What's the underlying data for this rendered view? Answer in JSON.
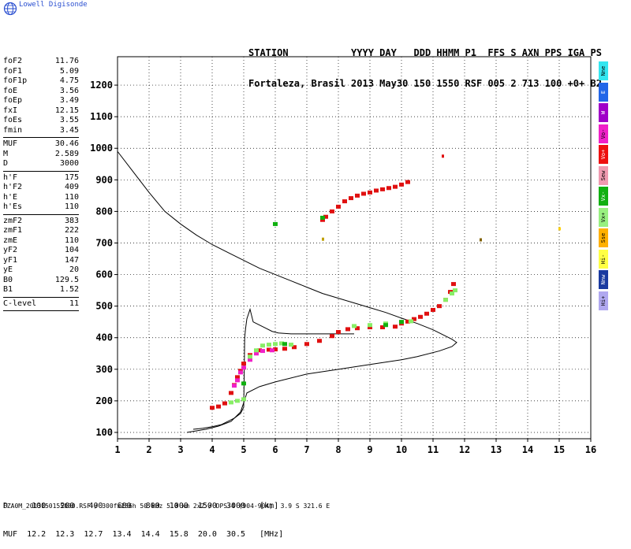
{
  "brand": "Lowell Digisonde",
  "header": {
    "line1": "STATION           YYYY DAY   DDD HHMM P1  FFS S AXN PPS IGA PS",
    "line2": "Fortaleza, Brasil 2013 May30 150 1550 RSF 005 2 713 100 +0+ B2"
  },
  "params": [
    [
      {
        "k": "foF2",
        "v": "11.76"
      },
      {
        "k": "foF1",
        "v": "5.09"
      },
      {
        "k": "foF1p",
        "v": "4.75"
      },
      {
        "k": "foE",
        "v": "3.56"
      },
      {
        "k": "foEp",
        "v": "3.49"
      },
      {
        "k": "fxI",
        "v": "12.15"
      },
      {
        "k": "foEs",
        "v": "3.55"
      },
      {
        "k": "fmin",
        "v": "3.45"
      }
    ],
    [
      {
        "k": "MUF",
        "v": "30.46"
      },
      {
        "k": "M",
        "v": "2.589"
      },
      {
        "k": "D",
        "v": "3000"
      }
    ],
    [
      {
        "k": "h'F",
        "v": "175"
      },
      {
        "k": "h'F2",
        "v": "409"
      },
      {
        "k": "h'E",
        "v": "110"
      },
      {
        "k": "h'Es",
        "v": "110"
      }
    ],
    [
      {
        "k": "zmF2",
        "v": "383"
      },
      {
        "k": "zmF1",
        "v": "222"
      },
      {
        "k": "zmE",
        "v": "110"
      },
      {
        "k": "yF2",
        "v": "104"
      },
      {
        "k": "yF1",
        "v": "147"
      },
      {
        "k": "yE",
        "v": "20"
      },
      {
        "k": "B0",
        "v": "129.5"
      },
      {
        "k": "B1",
        "v": "1.52"
      }
    ],
    [
      {
        "k": "C-level",
        "v": "11"
      }
    ]
  ],
  "legend": [
    {
      "label": "Nne",
      "color": "#33e6f0"
    },
    {
      "label": "E",
      "color": "#2266e8"
    },
    {
      "label": "W",
      "color": "#a000c8"
    },
    {
      "label": "Vo-",
      "color": "#f020c8"
    },
    {
      "label": "Vo+",
      "color": "#ee1010"
    },
    {
      "label": "Sew",
      "color": "#f09ab0"
    },
    {
      "label": "Vx-",
      "color": "#10b010"
    },
    {
      "label": "Vx+",
      "color": "#98f080"
    },
    {
      "label": "Sse",
      "color": "#ffb000"
    },
    {
      "label": "Hi-",
      "color": "#ffff44"
    },
    {
      "label": "Nnw",
      "color": "#1a3aa0"
    },
    {
      "label": "Hi+",
      "color": "#b0a8f0"
    }
  ],
  "muf_table": {
    "line1": "D     100   200   400   600   800  1000  1500  3000   [km]",
    "line2": "MUF  12.2  12.3  12.7  13.4  14.4  15.8  20.0  30.5   [MHz]"
  },
  "footer": "FZA0M_2013150155000.RSF / 300fx256h 50 kHz 5.0 km 2x2 / DPS-4 (904-904)  3.9 S 321.6 E",
  "chart_data": {
    "type": "scatter",
    "xlim": [
      1,
      16
    ],
    "ylim": [
      80,
      1290
    ],
    "xticks": [
      1,
      2,
      3,
      4,
      5,
      6,
      7,
      8,
      9,
      10,
      11,
      12,
      13,
      14,
      15,
      16
    ],
    "yticks": [
      100,
      200,
      300,
      400,
      500,
      600,
      700,
      800,
      900,
      1000,
      1100,
      1200
    ],
    "grid": true,
    "profile": {
      "name": "",
      "x": [
        1.0,
        1.5,
        2.0,
        2.5,
        3.0,
        3.5,
        4.0,
        4.5,
        5.0,
        5.5,
        6.0,
        6.5,
        7.0,
        7.5,
        8.0,
        8.5,
        9.0,
        9.5,
        10.0,
        10.5,
        11.0,
        11.3,
        11.6,
        11.75,
        11.6,
        11.2,
        10.5,
        10.0,
        9.0,
        8.0,
        7.0,
        6.0,
        5.5,
        5.1,
        5.02,
        4.9,
        4.6,
        4.2,
        3.8,
        3.5,
        3.2
      ],
      "y": [
        990,
        925,
        860,
        800,
        760,
        725,
        695,
        670,
        645,
        620,
        600,
        580,
        560,
        540,
        525,
        510,
        495,
        480,
        462,
        445,
        425,
        410,
        395,
        385,
        372,
        358,
        340,
        330,
        315,
        300,
        285,
        260,
        245,
        225,
        200,
        165,
        135,
        120,
        110,
        105,
        100
      ]
    },
    "virtual_trace": {
      "name": "",
      "x": [
        3.4,
        3.7,
        4.0,
        4.3,
        4.5,
        4.7,
        4.9,
        5.0,
        5.03,
        5.06,
        5.1,
        5.2,
        5.3,
        5.5,
        5.7,
        5.9,
        6.1,
        6.5,
        7.0,
        7.5,
        8.0,
        8.5
      ],
      "y": [
        110,
        113,
        118,
        125,
        135,
        145,
        160,
        180,
        400,
        430,
        460,
        490,
        450,
        440,
        430,
        420,
        415,
        412,
        412,
        412,
        412,
        412
      ]
    },
    "series": [
      {
        "name": "Vo+",
        "color": "#e01010",
        "x": [
          4.0,
          4.2,
          4.4,
          4.6,
          4.7,
          4.8,
          4.9,
          5.0,
          5.2,
          5.5,
          5.8,
          6.0,
          6.3,
          6.6,
          7.0,
          7.4,
          7.8,
          8.0,
          8.3,
          8.6,
          9.0,
          9.4,
          9.8,
          10.0,
          10.2,
          10.4,
          10.6,
          10.8,
          11.0,
          11.2,
          11.4,
          11.55,
          11.65
        ],
        "y": [
          178,
          182,
          192,
          225,
          250,
          275,
          295,
          318,
          345,
          360,
          362,
          363,
          365,
          370,
          380,
          390,
          405,
          418,
          427,
          430,
          433,
          433,
          435,
          445,
          451,
          459,
          466,
          476,
          488,
          500,
          520,
          545,
          570
        ]
      },
      {
        "name": "Vo+",
        "color": "#e01010",
        "x": [
          7.5,
          7.6,
          7.8,
          8.0,
          8.2,
          8.4,
          8.6,
          8.8,
          9.0,
          9.2,
          9.4,
          9.6,
          9.8,
          10.0,
          10.2
        ],
        "y": [
          773,
          783,
          800,
          815,
          832,
          842,
          850,
          856,
          860,
          866,
          870,
          874,
          878,
          885,
          893
        ]
      },
      {
        "name": "Vo-",
        "color": "#f020c8",
        "x": [
          4.7,
          4.8,
          4.9,
          5.0,
          5.2,
          5.4,
          5.6,
          5.9
        ],
        "y": [
          248,
          265,
          290,
          305,
          330,
          350,
          358,
          360
        ]
      },
      {
        "name": "Vx+",
        "color": "#88ee66",
        "x": [
          4.6,
          4.8,
          5.0,
          5.2,
          5.4,
          5.6,
          5.8,
          6.0,
          6.2,
          6.5,
          8.5,
          9.0,
          9.5,
          10.0,
          10.3,
          11.4,
          11.6,
          11.7
        ],
        "y": [
          195,
          200,
          205,
          340,
          360,
          375,
          378,
          380,
          382,
          378,
          437,
          440,
          445,
          450,
          452,
          520,
          540,
          550
        ]
      },
      {
        "name": "Vx-",
        "color": "#10b010",
        "x": [
          5.0,
          6.0,
          6.3,
          9.5,
          10.0,
          7.5
        ],
        "y": [
          255,
          760,
          380,
          440,
          450,
          780
        ]
      }
    ],
    "isolated": [
      {
        "x": 11.3,
        "y": 975,
        "color": "#e01010"
      },
      {
        "x": 7.5,
        "y": 712,
        "color": "#c0a000"
      },
      {
        "x": 12.5,
        "y": 710,
        "color": "#806000"
      },
      {
        "x": 15.0,
        "y": 745,
        "color": "#ffd000"
      }
    ]
  }
}
